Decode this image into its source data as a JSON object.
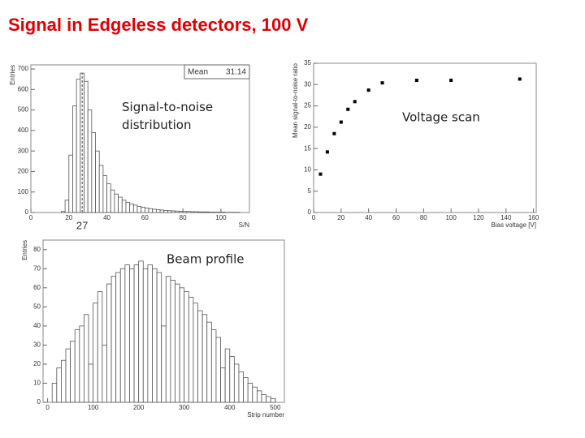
{
  "title": "Signal in Edgeless detectors, 100 V",
  "chart_data": [
    {
      "type": "histogram",
      "annotation": "Signal-to-noise distribution",
      "xlabel": "S/N",
      "ylabel": "Entries",
      "stats_label": "Mean",
      "stats_value": 31.14,
      "marker": 27,
      "color": "#555555",
      "bins": [
        10,
        12,
        14,
        16,
        18,
        20,
        22,
        24,
        26,
        28,
        30,
        32,
        34,
        36,
        38,
        40,
        42,
        44,
        46,
        48,
        50,
        52,
        54,
        56,
        58,
        60,
        62,
        64,
        66,
        68,
        70,
        72,
        74,
        76,
        78,
        80,
        82,
        84,
        86,
        88,
        90,
        92,
        94,
        96,
        98,
        100,
        102,
        104,
        106,
        108,
        110
      ],
      "values": [
        0,
        0,
        0,
        5,
        60,
        280,
        520,
        650,
        680,
        640,
        500,
        390,
        300,
        230,
        180,
        140,
        110,
        90,
        75,
        60,
        50,
        42,
        36,
        30,
        26,
        22,
        19,
        16,
        14,
        12,
        10,
        9,
        8,
        7,
        6,
        5,
        5,
        4,
        4,
        3,
        3,
        3,
        2,
        2,
        2,
        2,
        1,
        1,
        1,
        1
      ],
      "xlim": [
        0,
        115
      ],
      "xticks": [
        0,
        20,
        40,
        60,
        80,
        100
      ],
      "ylim": [
        0,
        720
      ],
      "yticks": [
        0,
        100,
        200,
        300,
        400,
        500,
        600,
        700
      ]
    },
    {
      "type": "scatter",
      "annotation": "Voltage scan",
      "xlabel": "Bias voltage [V]",
      "ylabel": "Mean signal-to-noise ratio",
      "color": "#000000",
      "x": [
        5,
        10,
        15,
        20,
        25,
        30,
        40,
        50,
        75,
        100,
        150
      ],
      "values": [
        9,
        14.2,
        18.5,
        21.2,
        24.2,
        26,
        28.7,
        30.4,
        31,
        31,
        31.3
      ],
      "xlim": [
        0,
        162
      ],
      "xticks": [
        0,
        20,
        40,
        60,
        80,
        100,
        120,
        140,
        160
      ],
      "ylim": [
        0,
        35
      ],
      "yticks": [
        0,
        5,
        10,
        15,
        20,
        25,
        30,
        35
      ]
    },
    {
      "type": "histogram",
      "annotation": "Beam profile",
      "xlabel": "Strip number",
      "ylabel": "Entries",
      "color": "#555555",
      "bins": [
        0,
        10,
        20,
        30,
        40,
        50,
        60,
        70,
        80,
        90,
        100,
        110,
        120,
        130,
        140,
        150,
        160,
        170,
        180,
        190,
        200,
        210,
        220,
        230,
        240,
        250,
        260,
        270,
        280,
        290,
        300,
        310,
        320,
        330,
        340,
        350,
        360,
        370,
        380,
        390,
        400,
        410,
        420,
        430,
        440,
        450,
        460,
        470,
        480,
        490,
        500
      ],
      "values": [
        0,
        10,
        18,
        22,
        28,
        32,
        38,
        40,
        46,
        20,
        52,
        58,
        30,
        62,
        66,
        68,
        70,
        72,
        70,
        72,
        74,
        70,
        72,
        70,
        68,
        40,
        66,
        64,
        62,
        60,
        58,
        55,
        52,
        48,
        46,
        42,
        38,
        34,
        18,
        28,
        24,
        20,
        16,
        13,
        10,
        8,
        6,
        4,
        3,
        2
      ],
      "xlim": [
        -10,
        520
      ],
      "xticks": [
        0,
        100,
        200,
        300,
        400,
        500
      ],
      "ylim": [
        0,
        85
      ],
      "yticks": [
        0,
        10,
        20,
        30,
        40,
        50,
        60,
        70,
        80
      ]
    }
  ]
}
